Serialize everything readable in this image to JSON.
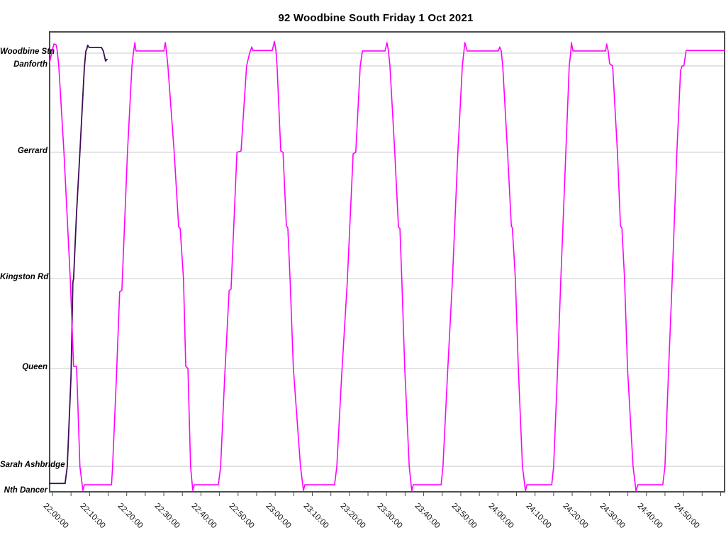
{
  "chart_data": {
    "type": "line",
    "title": "92 Woodbine South Friday 1 Oct 2021",
    "legend": "none",
    "grid": "horizontal-only",
    "x_axis": {
      "unit": "time-of-day",
      "tick_interval_minutes": 10,
      "minor_tick_minutes": 5,
      "range_minutes_from_2200": [
        0,
        181
      ],
      "labels": [
        "22:00:00",
        "22:10:00",
        "22:20:00",
        "22:30:00",
        "22:40:00",
        "22:50:00",
        "23:00:00",
        "23:10:00",
        "23:20:00",
        "23:30:00",
        "23:40:00",
        "23:50:00",
        "24:00:00",
        "24:10:00",
        "24:20:00",
        "24:30:00",
        "24:40:00",
        "24:50:00"
      ],
      "label_minutes": [
        0,
        10,
        20,
        30,
        40,
        50,
        60,
        70,
        80,
        90,
        100,
        110,
        120,
        130,
        140,
        150,
        160,
        170
      ]
    },
    "y_axis": {
      "unit": "route-position-percent",
      "range": [
        0,
        103
      ],
      "stations": [
        {
          "name": "Woodbine Stn",
          "dist": 100,
          "gridline": true
        },
        {
          "name": "Danforth",
          "dist": 97.1,
          "gridline": true
        },
        {
          "name": "Gerrard",
          "dist": 77.4,
          "gridline": true
        },
        {
          "name": "Kingston Rd",
          "dist": 48.6,
          "gridline": true
        },
        {
          "name": "Queen",
          "dist": 28.1,
          "gridline": true
        },
        {
          "name": "Sarah Ashbridge",
          "dist": 5.8,
          "gridline": true
        },
        {
          "name": "Nth Dancer",
          "dist": 0,
          "gridline": false
        }
      ]
    },
    "series": [
      {
        "name": "vehicle-run-dark",
        "color": "#3f0d55",
        "width": 1.8,
        "points": [
          [
            -0.8,
            1.9
          ],
          [
            3.4,
            1.9
          ],
          [
            4,
            5.8
          ],
          [
            5,
            26.5
          ],
          [
            5.5,
            47.8
          ],
          [
            5.7,
            48.6
          ],
          [
            6.5,
            63.7
          ],
          [
            7.4,
            77.4
          ],
          [
            8.6,
            96.8
          ],
          [
            9,
            100.5
          ],
          [
            9.2,
            100.8
          ],
          [
            9.5,
            101.8
          ],
          [
            9.9,
            101.3
          ],
          [
            13.2,
            101.3
          ],
          [
            13.7,
            100.5
          ],
          [
            14.3,
            98.2
          ],
          [
            14.7,
            98.6
          ]
        ]
      },
      {
        "name": "vehicle-run-magenta",
        "color": "#ff00ff",
        "width": 1.6,
        "points": [
          [
            -0.8,
            97.9
          ],
          [
            0,
            100.8
          ],
          [
            0.4,
            102.1
          ],
          [
            1,
            101.9
          ],
          [
            1.3,
            100.5
          ],
          [
            1.7,
            97.1
          ],
          [
            3.1,
            77.4
          ],
          [
            4.8,
            48.6
          ],
          [
            5.7,
            28.6
          ],
          [
            6.5,
            28.6
          ],
          [
            7.4,
            5.8
          ],
          [
            8.2,
            0.3
          ],
          [
            8.6,
            1.6
          ],
          [
            15.9,
            1.6
          ],
          [
            16.2,
            5.8
          ],
          [
            17.2,
            25.7
          ],
          [
            18.1,
            45.6
          ],
          [
            18.7,
            45.9
          ],
          [
            20.2,
            77.4
          ],
          [
            21.4,
            97.1
          ],
          [
            21.8,
            100
          ],
          [
            22.2,
            102.4
          ],
          [
            22.5,
            100.5
          ],
          [
            30,
            100.5
          ],
          [
            30.4,
            102.4
          ],
          [
            30.7,
            100.5
          ],
          [
            31.1,
            97.1
          ],
          [
            32.8,
            77.4
          ],
          [
            34,
            60.4
          ],
          [
            34.4,
            60.1
          ],
          [
            35.3,
            48.6
          ],
          [
            35.9,
            28.6
          ],
          [
            36.5,
            28.1
          ],
          [
            37.2,
            5.8
          ],
          [
            37.8,
            0.3
          ],
          [
            38.2,
            1.6
          ],
          [
            44.7,
            1.6
          ],
          [
            45.3,
            5.8
          ],
          [
            46.4,
            26.5
          ],
          [
            47.6,
            45.9
          ],
          [
            48.1,
            46.2
          ],
          [
            49.7,
            77.4
          ],
          [
            50.8,
            77.7
          ],
          [
            52.3,
            97.1
          ],
          [
            53.1,
            100
          ],
          [
            53.7,
            101.4
          ],
          [
            54,
            100.6
          ],
          [
            59.2,
            100.6
          ],
          [
            59.8,
            102.7
          ],
          [
            60.2,
            100.6
          ],
          [
            60.5,
            97.1
          ],
          [
            61.5,
            77.7
          ],
          [
            62.1,
            77.4
          ],
          [
            63,
            60.7
          ],
          [
            63.4,
            60.1
          ],
          [
            64,
            48.6
          ],
          [
            64.9,
            28.1
          ],
          [
            66.8,
            5.8
          ],
          [
            67.6,
            0.3
          ],
          [
            68,
            1.6
          ],
          [
            76,
            1.6
          ],
          [
            76.6,
            5.8
          ],
          [
            77.9,
            26.5
          ],
          [
            79.4,
            47.5
          ],
          [
            81,
            77.1
          ],
          [
            81.7,
            77.4
          ],
          [
            82.9,
            97.1
          ],
          [
            83.5,
            100.5
          ],
          [
            89.6,
            100.5
          ],
          [
            90.1,
            102.4
          ],
          [
            90.5,
            100.5
          ],
          [
            90.9,
            97.1
          ],
          [
            92.2,
            77.4
          ],
          [
            93.2,
            60.4
          ],
          [
            93.6,
            60
          ],
          [
            94.1,
            48.6
          ],
          [
            94.9,
            28.1
          ],
          [
            96.1,
            5.8
          ],
          [
            96.8,
            0.2
          ],
          [
            97.2,
            1.6
          ],
          [
            104.7,
            1.6
          ],
          [
            105.2,
            5.8
          ],
          [
            106.4,
            26.5
          ],
          [
            107.7,
            47.5
          ],
          [
            109.2,
            77.4
          ],
          [
            110.4,
            97.1
          ],
          [
            110.8,
            100
          ],
          [
            111.1,
            102.4
          ],
          [
            111.7,
            100.5
          ],
          [
            120.1,
            100.5
          ],
          [
            120.5,
            101.4
          ],
          [
            120.9,
            100.5
          ],
          [
            121.3,
            97.1
          ],
          [
            122.6,
            77.4
          ],
          [
            123.6,
            60.7
          ],
          [
            123.9,
            60.1
          ],
          [
            124.7,
            48.6
          ],
          [
            125.5,
            28.1
          ],
          [
            126.6,
            5.8
          ],
          [
            127.4,
            0.2
          ],
          [
            127.8,
            1.6
          ],
          [
            134.5,
            1.6
          ],
          [
            135,
            5.8
          ],
          [
            136,
            26.5
          ],
          [
            136.9,
            47.5
          ],
          [
            138.3,
            77.4
          ],
          [
            139.2,
            97.1
          ],
          [
            139.6,
            100
          ],
          [
            139.8,
            102.4
          ],
          [
            140.2,
            100.5
          ],
          [
            149,
            100.5
          ],
          [
            149.3,
            102.1
          ],
          [
            149.7,
            100.5
          ],
          [
            150.1,
            97.6
          ],
          [
            150.9,
            97.1
          ],
          [
            152.2,
            77.4
          ],
          [
            153,
            60.7
          ],
          [
            153.4,
            60.1
          ],
          [
            154.1,
            48.6
          ],
          [
            154.9,
            28.1
          ],
          [
            156.4,
            5.8
          ],
          [
            157.2,
            0.2
          ],
          [
            157.7,
            1.6
          ],
          [
            164.4,
            1.6
          ],
          [
            165,
            5.8
          ],
          [
            165.9,
            26.5
          ],
          [
            166.9,
            47.5
          ],
          [
            168.2,
            77.4
          ],
          [
            169.2,
            96
          ],
          [
            169.6,
            97.1
          ],
          [
            170.1,
            97.1
          ],
          [
            170.7,
            100.6
          ],
          [
            181,
            100.6
          ]
        ]
      }
    ],
    "colors": {
      "frame": "#4d4d4d",
      "gridline": "#c9c9c9",
      "background": "#ffffff",
      "text": "#000000"
    }
  }
}
